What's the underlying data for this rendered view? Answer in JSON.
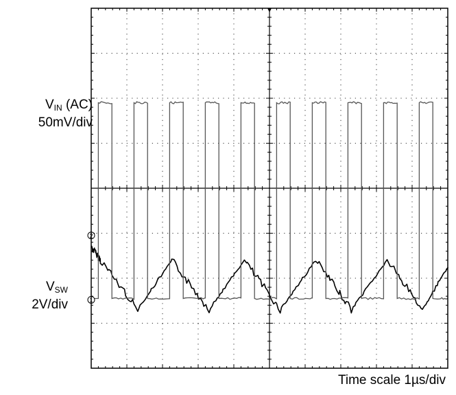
{
  "chart_data": {
    "type": "line",
    "title": "",
    "grid": true,
    "divisions": {
      "x": 10,
      "y": 8
    },
    "time_scale_label": "Time scale  1µs/div",
    "channels": [
      {
        "marker": "2",
        "name_main": "V",
        "name_sub": "IN",
        "name_suffix": " (AC)",
        "scale_label": "50mV/div",
        "waveform": "triangle",
        "color": "#000000",
        "x_div": [
          0.0,
          0.27,
          1.3,
          2.27,
          3.3,
          4.3,
          5.3,
          6.3,
          7.3,
          8.3,
          9.3,
          10.0
        ],
        "y_div": [
          2.7,
          2.4,
          1.3,
          2.4,
          1.3,
          2.4,
          1.3,
          2.4,
          1.3,
          2.4,
          1.3,
          2.25
        ]
      },
      {
        "marker": "1",
        "name_main": "V",
        "name_sub": "SW",
        "name_suffix": "",
        "scale_label": "2V/div",
        "waveform": "square",
        "color": "#555555",
        "period_div": 1.0,
        "first_rise_div": 0.2,
        "duty": 0.38,
        "high_div": 5.9,
        "low_div": 1.55
      }
    ]
  }
}
